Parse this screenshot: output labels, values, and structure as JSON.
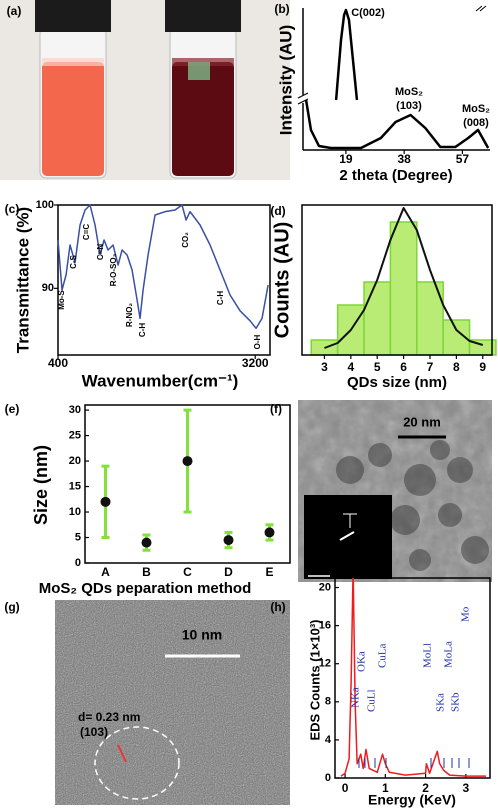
{
  "images": {
    "a": {
      "label": "(a)"
    },
    "f": {
      "label": "(f)",
      "scale_bar": "20 nm",
      "inset_text": "d = 1/R = 0.23 nm",
      "inset_scale": "5  1/nm"
    },
    "g": {
      "label": "(g)",
      "scale_bar": "10 nm",
      "d_spacing": "d= 0.23 nm",
      "plane": "(103)"
    }
  },
  "chart_data": [
    {
      "type": "line",
      "panel_label": "(b)",
      "ylabel": "Intensity (AU)",
      "xlabel": "2 theta (Degree)",
      "xlim": [
        5,
        66
      ],
      "xticks": [
        19,
        38,
        57
      ],
      "ylim": [
        0,
        142
      ],
      "x": [
        15.8,
        17.4,
        18.4,
        19,
        20,
        21.3,
        22.6,
        null,
        6,
        7.6,
        10.2,
        14.1,
        23.9,
        30.4,
        35.2,
        40.1,
        44.9,
        49.8,
        54.7,
        58.9,
        62.1,
        65.4
      ],
      "series": [
        {
          "color": "#000000",
          "values": [
            50,
            110,
            135,
            140,
            130,
            90,
            50,
            null,
            50,
            20,
            4,
            2,
            2,
            12,
            28,
            35,
            22,
            3,
            3,
            12,
            20,
            2
          ]
        }
      ],
      "annotations": [
        [
          "C(002)"
        ],
        [
          "MoS₂",
          "(103)"
        ],
        [
          "MoS₂",
          "(008)"
        ]
      ]
    },
    {
      "type": "line",
      "panel_label": "(c)",
      "ylabel": "Transmittance (%)",
      "xlabel": "Wavenumber(cm⁻¹)",
      "xlim": [
        400,
        3410
      ],
      "xticks": [
        400,
        3200
      ],
      "ylim": [
        82,
        100
      ],
      "yticks": [
        90,
        100
      ],
      "x": [
        400,
        457,
        514,
        571,
        642,
        713,
        784,
        855,
        926,
        997,
        1054,
        1111,
        1182,
        1253,
        1310,
        1381,
        1452,
        1523,
        1565,
        1608,
        1679,
        1778,
        1920,
        2062,
        2161,
        2218,
        2275,
        2417,
        2559,
        2701,
        2843,
        2985,
        3127,
        3212,
        3297,
        3383
      ],
      "series": [
        {
          "color": "#3b4fa3",
          "values": [
            95.8,
            89.8,
            91.6,
            95.2,
            93.1,
            97.6,
            99.4,
            100,
            97.6,
            94.0,
            95.8,
            94.6,
            95.2,
            92.8,
            94.6,
            94.0,
            92.2,
            88.6,
            86.4,
            89.8,
            94.0,
            98.8,
            99.2,
            99.4,
            100,
            98.2,
            99.2,
            97.6,
            95.2,
            92.2,
            89.2,
            87.3,
            86.1,
            85.2,
            86.4,
            90.4
          ]
        }
      ],
      "annotations": [
        "Mo-S",
        "C-S",
        "C=C",
        "C=N",
        "R-O-SO₃",
        "R-NO₂",
        "C-H",
        "CO₂",
        "C-H",
        "O-H"
      ]
    },
    {
      "type": "histogram",
      "panel_label": "(d)",
      "ylabel": "Counts (AU)",
      "xlabel": "QDs size (nm)",
      "xlim": [
        2.15,
        9.35
      ],
      "xticks": [
        3,
        4,
        5,
        6,
        7,
        8,
        9
      ],
      "ylim": [
        0,
        150
      ],
      "bins": [
        2.5,
        3.5,
        4.5,
        5.5,
        6.5,
        7.5,
        8.5,
        9.5
      ],
      "values": [
        15,
        50,
        73,
        133,
        73,
        35,
        15
      ],
      "color": "#b8ec74",
      "edge_color": "#7fd43a",
      "fit": {
        "x": [
          3,
          3.5,
          4,
          4.5,
          5,
          5.5,
          6,
          6.5,
          7,
          7.5,
          8,
          8.5,
          9
        ],
        "y": [
          7,
          12,
          25,
          45,
          75,
          115,
          147,
          125,
          85,
          50,
          25,
          14,
          10
        ],
        "color": "#111111"
      }
    },
    {
      "type": "errorbar",
      "panel_label": "(e)",
      "ylabel": "Size (nm)",
      "xlabel": "MoS₂ QDs peparation method",
      "categories": [
        "A",
        "B",
        "C",
        "D",
        "E"
      ],
      "values": [
        12,
        4,
        20,
        4.5,
        6
      ],
      "errors": [
        7,
        1.5,
        10,
        1.5,
        1.5
      ],
      "ylim": [
        0,
        31
      ],
      "yticks": [
        0,
        5,
        10,
        15,
        20,
        25,
        30
      ],
      "color": "#86e03c"
    },
    {
      "type": "line",
      "panel_label": "(h)",
      "ylabel": "EDS Counts (1×10³)",
      "xlabel": "Energy (KeV)",
      "xlim": [
        -0.25,
        3.6
      ],
      "xticks": [
        0,
        1,
        2,
        3
      ],
      "ylim": [
        0,
        21
      ],
      "yticks": [
        0,
        4,
        8,
        12,
        16,
        20
      ],
      "x": [
        -0.1,
        0,
        0.1,
        0.15,
        0.2,
        0.25,
        0.3,
        0.39,
        0.45,
        0.52,
        0.6,
        0.8,
        0.93,
        1.0,
        1.1,
        1.5,
        2.0,
        2.02,
        2.1,
        2.29,
        2.35,
        2.45,
        2.6,
        3.0,
        3.5
      ],
      "series": [
        {
          "color": "#ee1c1c",
          "values": [
            0.2,
            0.5,
            2,
            10,
            22,
            8,
            1.5,
            2.5,
            1,
            3,
            1,
            0.6,
            2.5,
            1.5,
            0.6,
            0.3,
            0.5,
            1.5,
            0.5,
            2.8,
            1.5,
            0.8,
            0.3,
            0.2,
            0.2
          ]
        }
      ],
      "annotations": [
        "NKa",
        "OKa",
        "CuLl",
        "CuLa",
        "MoLl",
        "SKa",
        "MoLa",
        "SKb",
        "Mo"
      ]
    }
  ]
}
